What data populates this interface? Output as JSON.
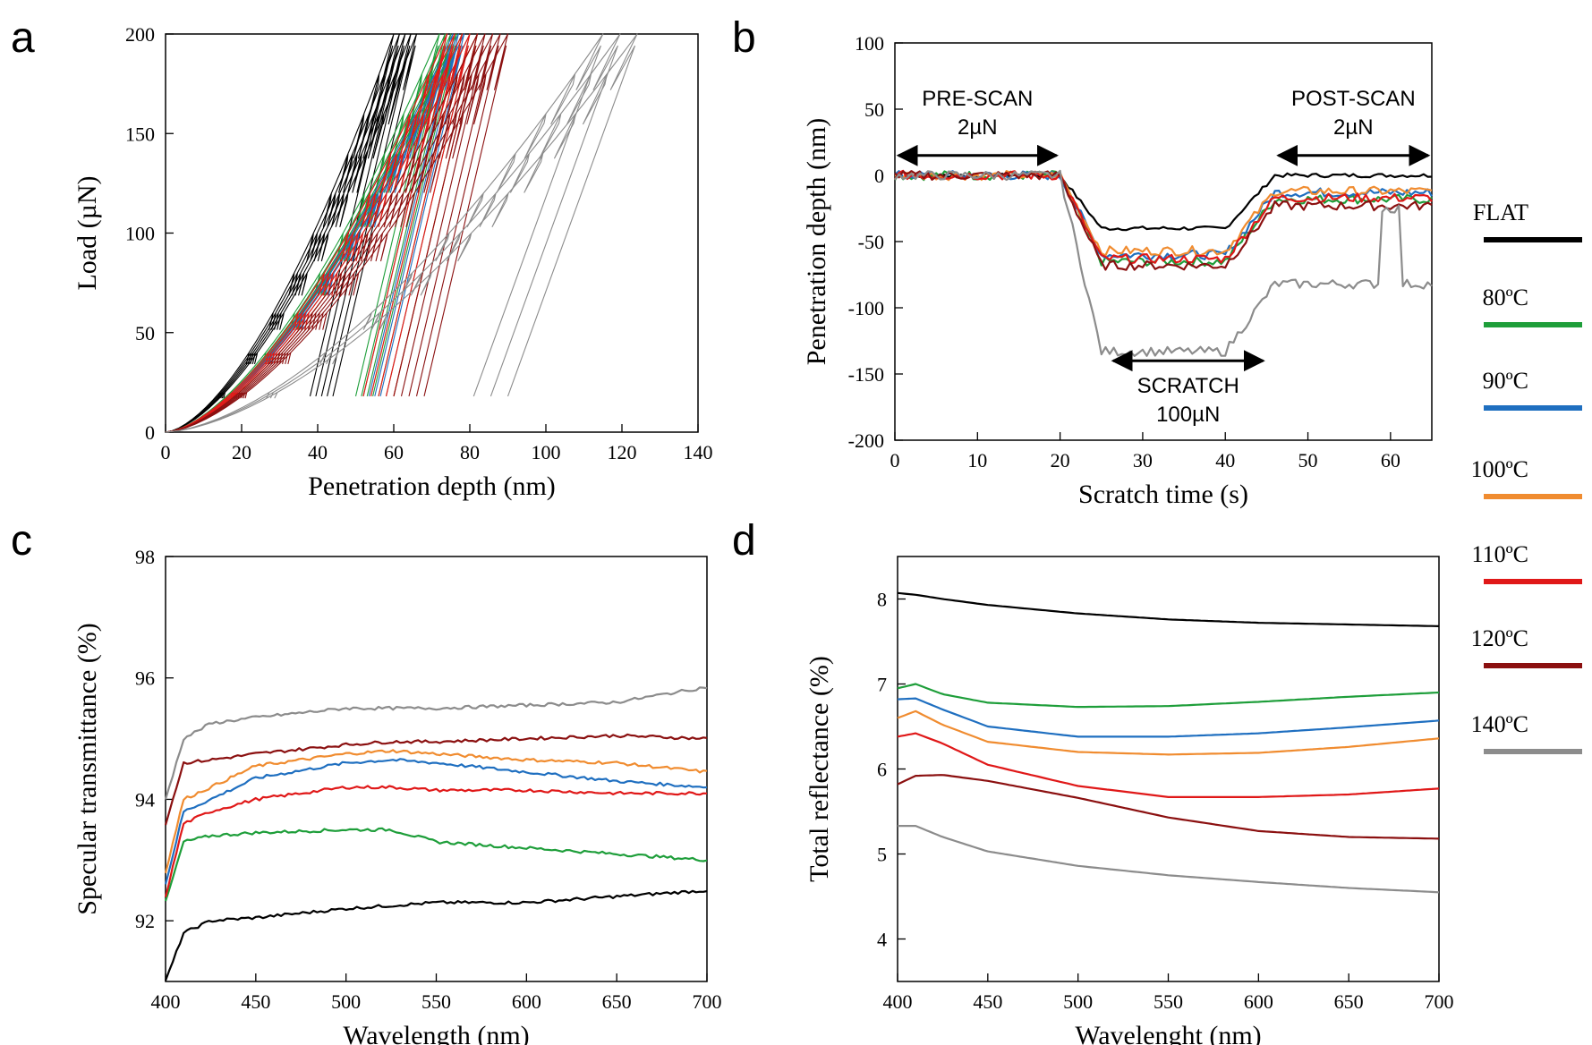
{
  "legend": {
    "entries": [
      {
        "key": "flat",
        "label": "FLAT",
        "color": "#000000"
      },
      {
        "key": "c80",
        "label": "80ºC",
        "color": "#1e9e3a"
      },
      {
        "key": "c90",
        "label": "90ºC",
        "color": "#1f6fc0"
      },
      {
        "key": "c100",
        "label": "100ºC",
        "color": "#f08c30"
      },
      {
        "key": "c110",
        "label": "110ºC",
        "color": "#e01818"
      },
      {
        "key": "c120",
        "label": "120ºC",
        "color": "#8b1010"
      },
      {
        "key": "c140",
        "label": "140ºC",
        "color": "#8c8c8c"
      }
    ]
  },
  "chart_data": [
    {
      "id": "a",
      "panel_label": "a",
      "type": "line",
      "xlabel": "Penetration depth (nm)",
      "ylabel": "Load (µN)",
      "xlim": [
        0,
        140
      ],
      "ylim": [
        0,
        200
      ],
      "xticks": [
        "0",
        "20",
        "40",
        "60",
        "80",
        "100",
        "120",
        "140"
      ],
      "yticks": [
        "0",
        "50",
        "100",
        "150",
        "200"
      ],
      "note": "Multi-cycle nanoindentation load-unload curves; each sample shows a family of curves reaching a maximum load of 200 µN.",
      "max_load_uN": 200,
      "series": [
        {
          "key": "flat",
          "max_depth_range_nm": [
            60,
            66
          ]
        },
        {
          "key": "c80",
          "max_depth_range_nm": [
            72,
            78
          ]
        },
        {
          "key": "c90",
          "max_depth_range_nm": [
            74,
            80
          ]
        },
        {
          "key": "c100",
          "max_depth_range_nm": [
            74,
            82
          ]
        },
        {
          "key": "c110",
          "max_depth_range_nm": [
            74,
            82
          ]
        },
        {
          "key": "c120",
          "max_depth_range_nm": [
            82,
            90
          ]
        },
        {
          "key": "c140",
          "max_depth_range_nm": [
            115,
            124
          ]
        }
      ]
    },
    {
      "id": "b",
      "panel_label": "b",
      "type": "line",
      "xlabel": "Scratch time (s)",
      "ylabel": "Penetration depth (nm)",
      "xlim": [
        0,
        65
      ],
      "ylim": [
        -200,
        100
      ],
      "xticks": [
        "0",
        "10",
        "20",
        "30",
        "40",
        "50",
        "60"
      ],
      "yticks": [
        "100",
        "50",
        "0",
        "-50",
        "-100",
        "-150",
        "-200"
      ],
      "annotations": [
        {
          "line1": "PRE-SCAN",
          "line2": "2µN",
          "x_range": [
            0,
            20
          ],
          "y": 15
        },
        {
          "line1": "POST-SCAN",
          "line2": "2µN",
          "x_range": [
            46,
            65
          ],
          "y": 15
        },
        {
          "line1": "SCRATCH",
          "line2": "100µN",
          "x_range": [
            26,
            45
          ],
          "y": -140
        }
      ],
      "series": [
        {
          "key": "flat",
          "scratch_depth_nm": -40,
          "residual_depth_nm": 0
        },
        {
          "key": "c80",
          "scratch_depth_nm": -65,
          "residual_depth_nm": -18
        },
        {
          "key": "c90",
          "scratch_depth_nm": -60,
          "residual_depth_nm": -13
        },
        {
          "key": "c100",
          "scratch_depth_nm": -57,
          "residual_depth_nm": -12
        },
        {
          "key": "c110",
          "scratch_depth_nm": -63,
          "residual_depth_nm": -17
        },
        {
          "key": "c120",
          "scratch_depth_nm": -68,
          "residual_depth_nm": -23
        },
        {
          "key": "c140",
          "scratch_depth_nm": -133,
          "residual_depth_nm": -82
        }
      ]
    },
    {
      "id": "c",
      "panel_label": "c",
      "type": "line",
      "xlabel": "Wavelength (nm)",
      "ylabel": "Specular transmittance (%)",
      "xlim": [
        400,
        700
      ],
      "ylim": [
        91,
        98
      ],
      "xticks": [
        "400",
        "450",
        "500",
        "550",
        "600",
        "650",
        "700"
      ],
      "yticks": [
        "92",
        "94",
        "96",
        "98"
      ],
      "x": [
        400,
        410,
        425,
        450,
        500,
        525,
        550,
        600,
        650,
        700
      ],
      "series": [
        {
          "key": "flat",
          "values": [
            91.0,
            91.8,
            92.0,
            92.05,
            92.2,
            92.25,
            92.3,
            92.3,
            92.4,
            92.5
          ]
        },
        {
          "key": "c80",
          "values": [
            92.3,
            93.3,
            93.4,
            93.45,
            93.5,
            93.5,
            93.3,
            93.2,
            93.1,
            93.0
          ]
        },
        {
          "key": "c90",
          "values": [
            92.6,
            93.8,
            94.0,
            94.35,
            94.6,
            94.65,
            94.6,
            94.45,
            94.3,
            94.2
          ]
        },
        {
          "key": "c100",
          "values": [
            92.8,
            94.0,
            94.2,
            94.55,
            94.75,
            94.8,
            94.75,
            94.65,
            94.6,
            94.45
          ]
        },
        {
          "key": "c110",
          "values": [
            92.4,
            93.6,
            93.8,
            94.0,
            94.2,
            94.2,
            94.15,
            94.15,
            94.1,
            94.1
          ]
        },
        {
          "key": "c120",
          "values": [
            93.6,
            94.6,
            94.65,
            94.75,
            94.9,
            94.95,
            94.95,
            95.0,
            95.05,
            95.0
          ]
        },
        {
          "key": "c140",
          "values": [
            94.0,
            95.0,
            95.25,
            95.35,
            95.5,
            95.5,
            95.5,
            95.55,
            95.6,
            95.85
          ]
        }
      ]
    },
    {
      "id": "d",
      "panel_label": "d",
      "type": "line",
      "xlabel": "Wavelenght (nm)",
      "ylabel": "Total reflectance (%)",
      "xlim": [
        400,
        700
      ],
      "ylim": [
        3.5,
        8.5
      ],
      "xticks": [
        "400",
        "450",
        "500",
        "550",
        "600",
        "650",
        "700"
      ],
      "yticks": [
        "4",
        "5",
        "6",
        "7",
        "8"
      ],
      "x": [
        400,
        410,
        425,
        450,
        500,
        550,
        600,
        650,
        700
      ],
      "series": [
        {
          "key": "flat",
          "values": [
            8.07,
            8.05,
            8.0,
            7.93,
            7.83,
            7.76,
            7.72,
            7.7,
            7.68
          ]
        },
        {
          "key": "c80",
          "values": [
            6.95,
            7.0,
            6.88,
            6.78,
            6.73,
            6.74,
            6.79,
            6.85,
            6.9
          ]
        },
        {
          "key": "c90",
          "values": [
            6.82,
            6.83,
            6.7,
            6.5,
            6.38,
            6.38,
            6.42,
            6.49,
            6.57
          ]
        },
        {
          "key": "c100",
          "values": [
            6.6,
            6.68,
            6.52,
            6.32,
            6.2,
            6.17,
            6.19,
            6.26,
            6.36
          ]
        },
        {
          "key": "c110",
          "values": [
            6.38,
            6.42,
            6.3,
            6.05,
            5.8,
            5.67,
            5.67,
            5.7,
            5.77
          ]
        },
        {
          "key": "c120",
          "values": [
            5.82,
            5.92,
            5.93,
            5.86,
            5.66,
            5.43,
            5.27,
            5.2,
            5.18
          ]
        },
        {
          "key": "c140",
          "values": [
            5.33,
            5.33,
            5.2,
            5.03,
            4.86,
            4.75,
            4.67,
            4.6,
            4.55
          ]
        }
      ]
    }
  ]
}
